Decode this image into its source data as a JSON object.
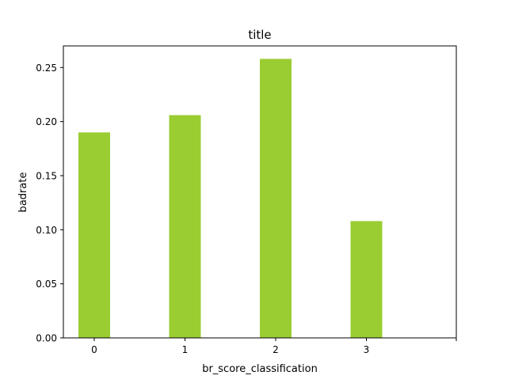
{
  "chart_data": {
    "type": "bar",
    "title": "title",
    "xlabel": "br_score_classification",
    "ylabel": "badrate",
    "categories": [
      "0",
      "1",
      "2",
      "3"
    ],
    "values": [
      0.19,
      0.206,
      0.258,
      0.108
    ],
    "ylim": [
      0,
      0.27
    ],
    "yticks": [
      "0.00",
      "0.05",
      "0.10",
      "0.15",
      "0.20",
      "0.25"
    ],
    "xticks": [
      "0",
      "1",
      "2",
      "3",
      ""
    ],
    "bar_color": "#9acd32",
    "grid": false,
    "legend": "none"
  }
}
